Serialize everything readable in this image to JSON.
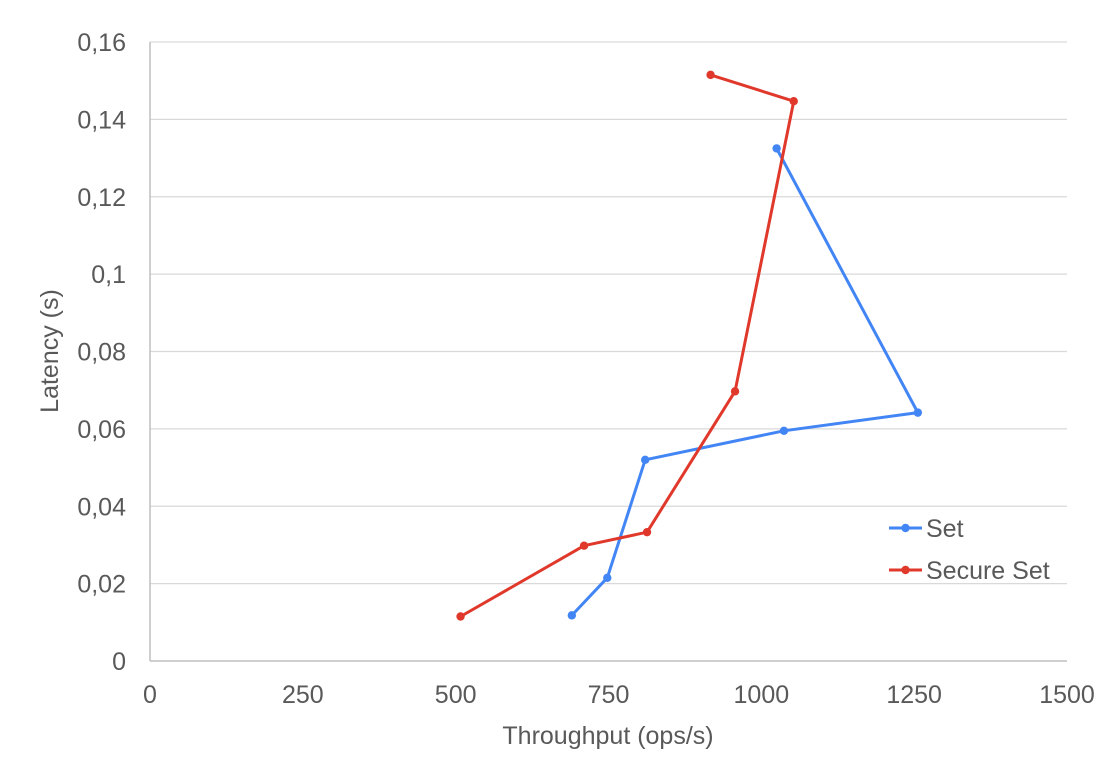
{
  "chart_data": {
    "type": "line",
    "xlabel": "Throughput (ops/s)",
    "ylabel": "Latency (s)",
    "xlim": [
      0,
      1500
    ],
    "ylim": [
      0,
      0.16
    ],
    "x_ticks": [
      "0",
      "250",
      "500",
      "750",
      "1000",
      "1250",
      "1500"
    ],
    "y_ticks": [
      "0",
      "0,02",
      "0,04",
      "0,06",
      "0,08",
      "0,1",
      "0,12",
      "0,14",
      "0,16"
    ],
    "grid": true,
    "legend_position": "right",
    "series": [
      {
        "name": "Set",
        "color": "#4285f4",
        "points": [
          [
            690,
            0.0118
          ],
          [
            748,
            0.0215
          ],
          [
            810,
            0.052
          ],
          [
            1037,
            0.0595
          ],
          [
            1256,
            0.0642
          ],
          [
            1025,
            0.1325
          ]
        ]
      },
      {
        "name": "Secure Set",
        "color": "#e0392b",
        "points": [
          [
            508,
            0.0115
          ],
          [
            710,
            0.0298
          ],
          [
            813,
            0.0333
          ],
          [
            957,
            0.0697
          ],
          [
            1053,
            0.1447
          ],
          [
            917,
            0.1515
          ]
        ]
      }
    ]
  }
}
